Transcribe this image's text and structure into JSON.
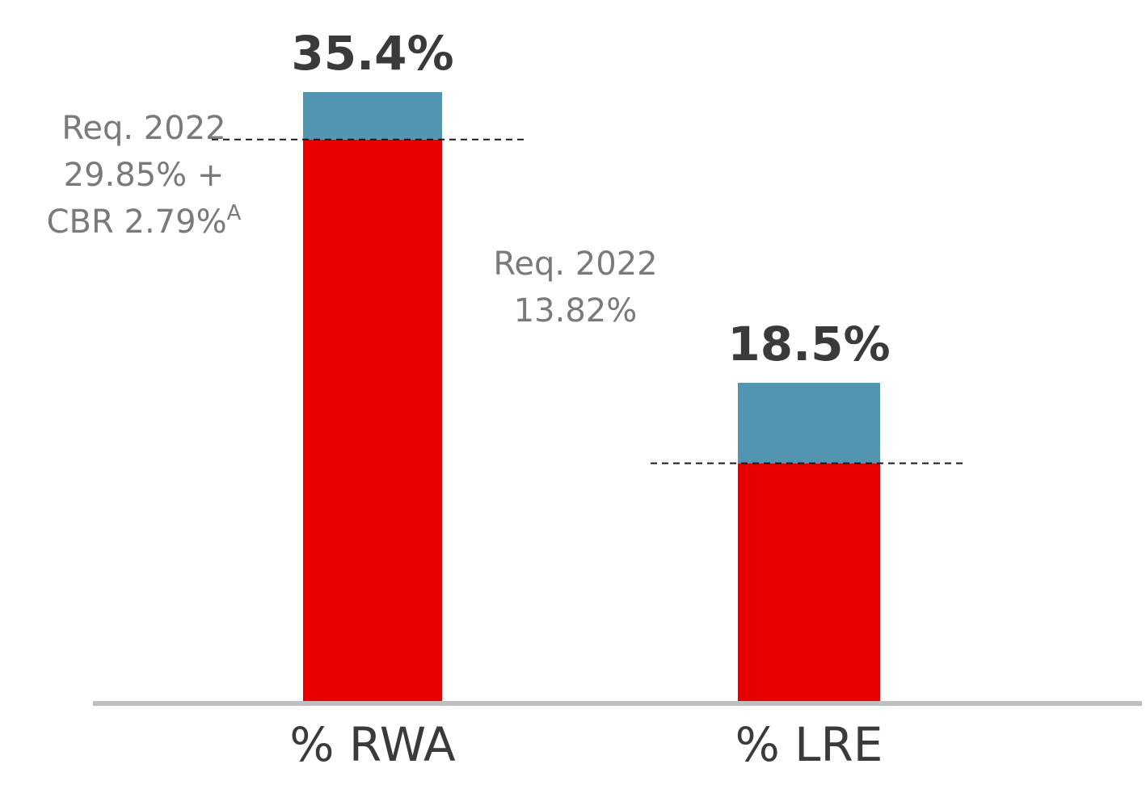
{
  "chart_data": {
    "type": "bar",
    "stacked": true,
    "categories": [
      "% RWA",
      "% LRE"
    ],
    "totals": [
      35.4,
      18.5
    ],
    "total_labels": [
      "35.4%",
      "18.5%"
    ],
    "requirements": [
      32.64,
      13.82
    ],
    "requirement_labels": [
      [
        "Req. 2022",
        "29.85% +",
        "CBR 2.79%"
      ],
      [
        "Req. 2022",
        "13.82%"
      ]
    ],
    "requirement_footnote": "A",
    "series": [
      {
        "name": "",
        "color": "#e60000",
        "values": [
          32.64,
          13.82
        ]
      },
      {
        "name": "",
        "color": "#5195b1",
        "values": [
          2.76,
          4.68
        ]
      }
    ],
    "xlabel": "",
    "ylabel": "",
    "gridlines": false,
    "legend": "none"
  }
}
